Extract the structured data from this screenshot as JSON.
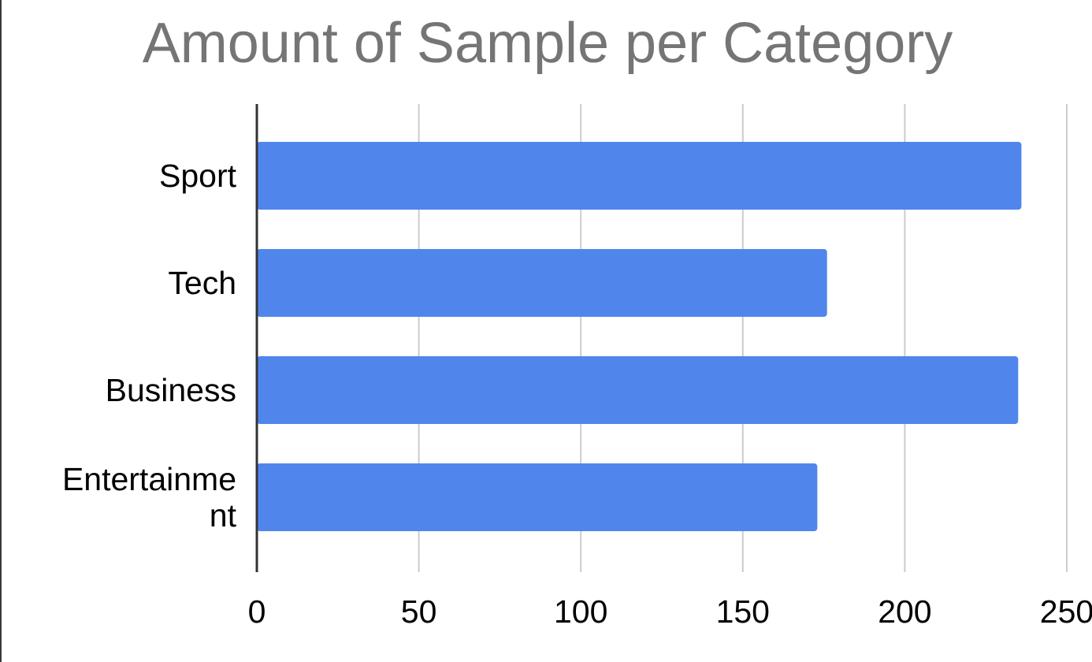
{
  "chart_data": {
    "type": "bar",
    "orientation": "horizontal",
    "title": "Amount of Sample per Category",
    "categories": [
      "Sport",
      "Tech",
      "Business",
      "Entertainment"
    ],
    "category_label_lines": [
      [
        "Sport"
      ],
      [
        "Tech"
      ],
      [
        "Business"
      ],
      [
        "Entertainme",
        "nt"
      ]
    ],
    "values": [
      236,
      176,
      235,
      173
    ],
    "xlim": [
      0,
      250
    ],
    "xticks": [
      "0",
      "50",
      "100",
      "150",
      "200",
      "250"
    ],
    "xlabel": "",
    "ylabel": "",
    "grid": "vertical",
    "legend": "none",
    "bar_color": "#5086EC",
    "grid_color": "#CCCCCC",
    "axis_color": "#333333",
    "title_color": "#757575"
  }
}
